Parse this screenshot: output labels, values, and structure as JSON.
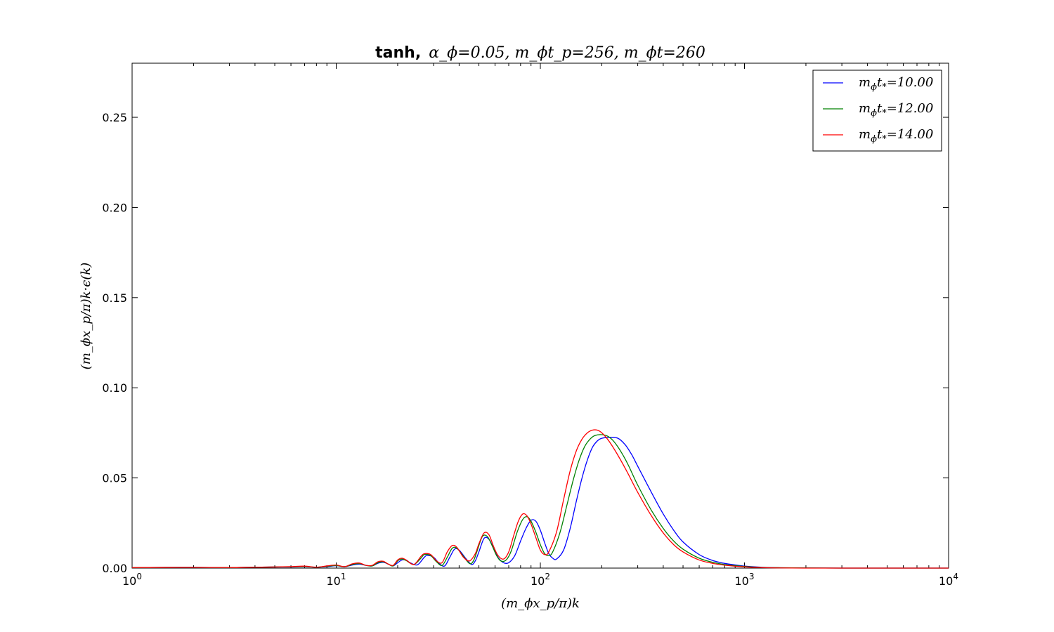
{
  "chart_data": {
    "type": "line",
    "title": "tanh, α_ϕ=0.05, m_ϕt_p=256, m_ϕt=260",
    "title_bold": "tanh,",
    "title_math": "α_ϕ=0.05, m_ϕt_p=256, m_ϕt=260",
    "xlabel": "(m_ϕx_p/π)k",
    "ylabel": "(m_ϕx_p/π)k·ϵ(k)",
    "xscale": "log",
    "xlim": [
      1,
      10000
    ],
    "ylim": [
      0,
      0.28
    ],
    "x_ticks": [
      1,
      10,
      100,
      1000,
      10000
    ],
    "x_tick_labels": [
      {
        "base": "10",
        "exp": "0"
      },
      {
        "base": "10",
        "exp": "1"
      },
      {
        "base": "10",
        "exp": "2"
      },
      {
        "base": "10",
        "exp": "3"
      },
      {
        "base": "10",
        "exp": "4"
      }
    ],
    "y_ticks": [
      0.0,
      0.05,
      0.1,
      0.15,
      0.2,
      0.25
    ],
    "y_tick_labels": [
      "0.00",
      "0.05",
      "0.10",
      "0.15",
      "0.20",
      "0.25"
    ],
    "grid": false,
    "legend_position": "top-right",
    "series": [
      {
        "name": "m_ϕt_*=10.00",
        "color": "#0000ff",
        "x": [
          1,
          2,
          3,
          4,
          5,
          6,
          7,
          8,
          9,
          10,
          11,
          12,
          13,
          14,
          15,
          16,
          17,
          18,
          19,
          20,
          21,
          22,
          23,
          25,
          27,
          28,
          30,
          32,
          34,
          36,
          38,
          40,
          43,
          46,
          48,
          50,
          53,
          56,
          59,
          62,
          66,
          70,
          75,
          80,
          85,
          90,
          95,
          100,
          105,
          110,
          115,
          120,
          130,
          140,
          150,
          160,
          170,
          180,
          190,
          200,
          220,
          240,
          260,
          280,
          300,
          350,
          400,
          450,
          500,
          600,
          700,
          800,
          1000,
          1200,
          1500,
          2000,
          3000,
          5000,
          10000
        ],
        "values": [
          0.0003,
          0.0004,
          0.0003,
          0.0005,
          0.0006,
          0.0006,
          0.0008,
          0.0005,
          0.0008,
          0.0013,
          0.0008,
          0.0017,
          0.0022,
          0.0015,
          0.0012,
          0.0027,
          0.0032,
          0.0022,
          0.0012,
          0.003,
          0.0045,
          0.0045,
          0.003,
          0.0018,
          0.006,
          0.007,
          0.006,
          0.0025,
          0.0012,
          0.006,
          0.0105,
          0.01,
          0.0055,
          0.002,
          0.004,
          0.009,
          0.0165,
          0.016,
          0.011,
          0.006,
          0.003,
          0.003,
          0.007,
          0.015,
          0.022,
          0.0265,
          0.026,
          0.021,
          0.014,
          0.008,
          0.0055,
          0.005,
          0.01,
          0.022,
          0.037,
          0.05,
          0.06,
          0.067,
          0.0705,
          0.072,
          0.0725,
          0.072,
          0.0685,
          0.063,
          0.0565,
          0.042,
          0.03,
          0.021,
          0.0145,
          0.0075,
          0.0042,
          0.0026,
          0.0011,
          0.0005,
          0.0002,
          0.0001,
          0.0,
          0.0,
          0.0
        ]
      },
      {
        "name": "m_ϕt_*=12.00",
        "color": "#008000",
        "x": [
          1,
          2,
          3,
          4,
          5,
          6,
          7,
          8,
          9,
          10,
          11,
          12,
          13,
          14,
          15,
          16,
          17,
          18,
          19,
          20,
          21,
          22,
          24,
          26,
          27,
          29,
          31,
          33,
          35,
          37,
          39,
          42,
          45,
          47,
          49,
          52,
          55,
          58,
          61,
          64,
          68,
          72,
          77,
          82,
          86,
          90,
          95,
          100,
          105,
          110,
          115,
          125,
          135,
          145,
          155,
          165,
          175,
          185,
          200,
          215,
          230,
          250,
          270,
          300,
          350,
          400,
          450,
          500,
          600,
          700,
          800,
          1000,
          1200,
          1500,
          2000,
          3000,
          5000,
          10000
        ],
        "values": [
          0.0003,
          0.0004,
          0.0003,
          0.0005,
          0.0006,
          0.0007,
          0.0009,
          0.0005,
          0.001,
          0.0014,
          0.0008,
          0.002,
          0.0025,
          0.0015,
          0.0012,
          0.003,
          0.0035,
          0.0022,
          0.0012,
          0.004,
          0.005,
          0.0042,
          0.002,
          0.0055,
          0.0075,
          0.007,
          0.0035,
          0.0015,
          0.006,
          0.011,
          0.011,
          0.0065,
          0.0025,
          0.004,
          0.0095,
          0.0175,
          0.0175,
          0.0125,
          0.007,
          0.004,
          0.0045,
          0.0095,
          0.02,
          0.027,
          0.0285,
          0.026,
          0.02,
          0.013,
          0.008,
          0.007,
          0.009,
          0.02,
          0.035,
          0.049,
          0.06,
          0.0675,
          0.0715,
          0.0735,
          0.074,
          0.073,
          0.07,
          0.064,
          0.057,
          0.046,
          0.032,
          0.022,
          0.015,
          0.0105,
          0.0055,
          0.0032,
          0.002,
          0.0009,
          0.0004,
          0.0002,
          0.0001,
          0.0,
          0.0,
          0.0
        ]
      },
      {
        "name": "m_ϕt_*=14.00",
        "color": "#ff0000",
        "x": [
          1,
          2,
          3,
          4,
          5,
          6,
          7,
          8,
          9,
          10,
          11,
          12,
          13,
          14,
          15,
          16,
          17,
          18,
          19,
          20,
          21,
          22,
          24,
          26,
          27,
          29,
          31,
          33,
          35,
          37,
          39,
          42,
          45,
          48,
          50,
          53,
          56,
          59,
          62,
          66,
          70,
          74,
          78,
          82,
          86,
          90,
          95,
          100,
          105,
          110,
          120,
          130,
          140,
          150,
          160,
          170,
          180,
          190,
          200,
          215,
          230,
          250,
          270,
          300,
          350,
          400,
          450,
          500,
          600,
          700,
          800,
          1000,
          1200,
          1500,
          2000,
          3000,
          5000,
          10000
        ],
        "values": [
          0.0003,
          0.0004,
          0.0003,
          0.0005,
          0.0006,
          0.0008,
          0.0011,
          0.0005,
          0.0012,
          0.0017,
          0.0008,
          0.0024,
          0.0028,
          0.0015,
          0.0015,
          0.0035,
          0.0038,
          0.0022,
          0.0015,
          0.0045,
          0.0055,
          0.0045,
          0.002,
          0.0065,
          0.008,
          0.0075,
          0.004,
          0.003,
          0.009,
          0.0125,
          0.0115,
          0.006,
          0.004,
          0.008,
          0.0135,
          0.0195,
          0.0185,
          0.012,
          0.007,
          0.005,
          0.009,
          0.018,
          0.026,
          0.03,
          0.029,
          0.0245,
          0.017,
          0.01,
          0.0075,
          0.009,
          0.02,
          0.038,
          0.054,
          0.065,
          0.0715,
          0.075,
          0.0765,
          0.0765,
          0.075,
          0.071,
          0.066,
          0.059,
          0.052,
          0.042,
          0.029,
          0.0195,
          0.013,
          0.009,
          0.0045,
          0.0026,
          0.0016,
          0.0007,
          0.0003,
          0.0001,
          0.0,
          0.0,
          0.0,
          0.0
        ]
      }
    ],
    "legend_entries": [
      {
        "prefix": "m",
        "sub1": "ϕ",
        "mid": "t",
        "sub2": "*",
        "value": "=10.00",
        "color": "#0000ff"
      },
      {
        "prefix": "m",
        "sub1": "ϕ",
        "mid": "t",
        "sub2": "*",
        "value": "=12.00",
        "color": "#008000"
      },
      {
        "prefix": "m",
        "sub1": "ϕ",
        "mid": "t",
        "sub2": "*",
        "value": "=14.00",
        "color": "#ff0000"
      }
    ]
  }
}
